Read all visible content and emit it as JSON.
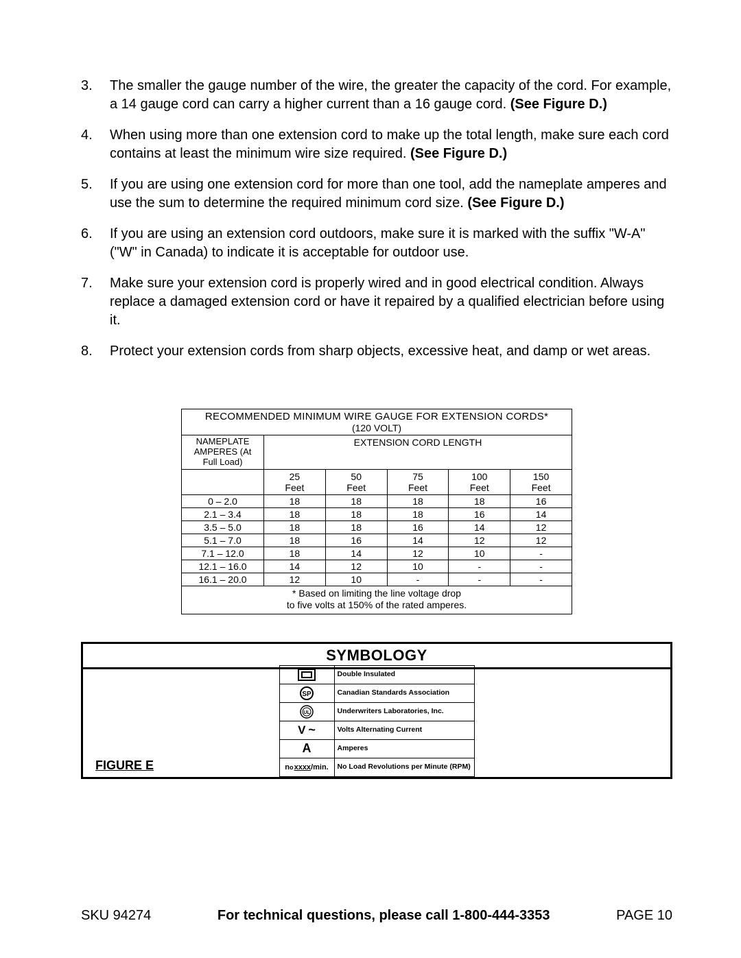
{
  "list": {
    "start": 3,
    "items": [
      {
        "num": "3.",
        "text": "The smaller the gauge number of the wire, the greater the capacity of the cord. For example, a 14 gauge cord can carry a higher current than a 16 gauge cord. ",
        "bold": "(See Figure D.)"
      },
      {
        "num": "4.",
        "text": "When using more than one extension cord to make up the total length, make sure each cord contains at least the minimum wire size required.  ",
        "bold": "(See Figure D.)"
      },
      {
        "num": "5.",
        "text": "If you are using one extension cord for more than one tool, add the nameplate amperes and use the sum to determine the required minimum cord size.  ",
        "bold": "(See Figure D.)"
      },
      {
        "num": "6.",
        "text": "If you are using an extension cord outdoors, make sure it is marked with the suffix \"W-A\" (\"W\" in Canada) to indicate it is acceptable for outdoor use.",
        "bold": ""
      },
      {
        "num": "7.",
        "text": "Make sure your extension cord is properly wired and in good electrical condition. Always replace a damaged extension cord or have it repaired by a qualified electrician before using it.",
        "bold": ""
      },
      {
        "num": "8.",
        "text": "Protect your extension cords from sharp objects, excessive heat, and damp or wet areas.",
        "bold": ""
      }
    ]
  },
  "wireTable": {
    "title": "RECOMMENDED MINIMUM WIRE GAUGE FOR EXTENSION CORDS*",
    "subtitle": "(120 VOLT)",
    "nameplateHeader": "NAMEPLATE AMPERES (At Full Load)",
    "extHeader": "EXTENSION CORD LENGTH",
    "cols": [
      "25\nFeet",
      "50\nFeet",
      "75\nFeet",
      "100\nFeet",
      "150\nFeet"
    ],
    "rows": [
      {
        "range": "0 – 2.0",
        "vals": [
          "18",
          "18",
          "18",
          "18",
          "16"
        ]
      },
      {
        "range": "2.1 – 3.4",
        "vals": [
          "18",
          "18",
          "18",
          "16",
          "14"
        ]
      },
      {
        "range": "3.5 – 5.0",
        "vals": [
          "18",
          "18",
          "16",
          "14",
          "12"
        ]
      },
      {
        "range": "5.1 – 7.0",
        "vals": [
          "18",
          "16",
          "14",
          "12",
          "12"
        ]
      },
      {
        "range": "7.1 – 12.0",
        "vals": [
          "18",
          "14",
          "12",
          "10",
          "-"
        ]
      },
      {
        "range": "12.1 – 16.0",
        "vals": [
          "14",
          "12",
          "10",
          "-",
          "-"
        ]
      },
      {
        "range": "16.1 – 20.0",
        "vals": [
          "12",
          "10",
          "-",
          "-",
          "-"
        ]
      }
    ],
    "footnote1": "* Based on limiting the line voltage drop",
    "footnote2": "to five volts at 150% of the rated amperes."
  },
  "symbology": {
    "header": "SYMBOLOGY",
    "figureLabel": "FIGURE E",
    "rows": [
      {
        "icon": "di",
        "label": "Double Insulated"
      },
      {
        "icon": "csa",
        "label": "Canadian Standards Association"
      },
      {
        "icon": "ul",
        "label": "Underwriters Laboratories, Inc."
      },
      {
        "icon": "vac",
        "label": "Volts Alternating Current"
      },
      {
        "icon": "amp",
        "label": "Amperes"
      },
      {
        "icon": "rpm",
        "label": "No Load Revolutions per Minute (RPM)"
      }
    ]
  },
  "footer": {
    "sku": "SKU 94274",
    "center": "For technical questions, please call 1-800-444-3353",
    "page": "PAGE 10"
  }
}
